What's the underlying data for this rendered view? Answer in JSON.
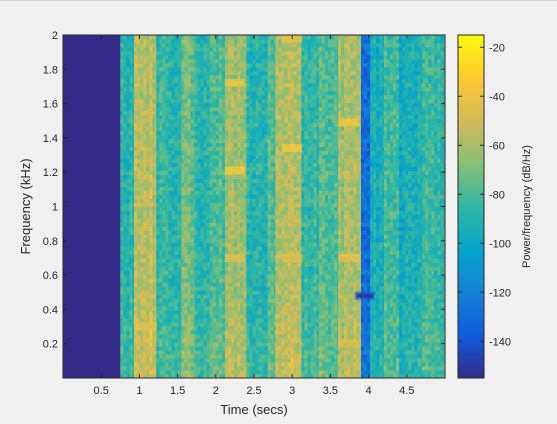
{
  "chart_data": {
    "type": "heatmap",
    "xlabel": "Time (secs)",
    "ylabel": "Frequency (kHz)",
    "colorbar_label": "Power/frequency (dB/Hz)",
    "xlim": [
      0,
      5.0
    ],
    "ylim": [
      0,
      2.0
    ],
    "clim": [
      -155,
      -15
    ],
    "x_ticks": [
      0.5,
      1,
      1.5,
      2,
      2.5,
      3,
      3.5,
      4,
      4.5
    ],
    "x_tick_labels": [
      "0.5",
      "1",
      "1.5",
      "2",
      "2.5",
      "3",
      "3.5",
      "4",
      "4.5"
    ],
    "y_ticks": [
      0.2,
      0.4,
      0.6,
      0.8,
      1.0,
      1.2,
      1.4,
      1.6,
      1.8,
      2.0
    ],
    "y_tick_labels": [
      "0.2",
      "0.4",
      "0.6",
      "0.8",
      "1",
      "1.2",
      "1.4",
      "1.6",
      "1.8",
      "2"
    ],
    "colorbar_ticks": [
      -20,
      -40,
      -60,
      -80,
      -100,
      -120,
      -140
    ],
    "colorbar_tick_labels": [
      "-20",
      "-40",
      "-60",
      "-80",
      "-100",
      "-120",
      "-140"
    ],
    "colormap": "parula",
    "colormap_stops": [
      "#352a87",
      "#0f5cdd",
      "#1481d6",
      "#06a4ca",
      "#2eb7a4",
      "#87bf77",
      "#d1bb59",
      "#fec832",
      "#f9fb0e"
    ],
    "time_segments_secs": [
      {
        "t0": 0.0,
        "t1": 0.75,
        "level_db": -155
      },
      {
        "t0": 0.75,
        "t1": 0.93,
        "level_db": -88
      },
      {
        "t0": 0.93,
        "t1": 1.22,
        "level_db": -55
      },
      {
        "t0": 1.22,
        "t1": 1.55,
        "level_db": -85
      },
      {
        "t0": 1.55,
        "t1": 1.72,
        "level_db": -72
      },
      {
        "t0": 1.72,
        "t1": 1.92,
        "level_db": -90
      },
      {
        "t0": 1.92,
        "t1": 2.12,
        "level_db": -80
      },
      {
        "t0": 2.12,
        "t1": 2.4,
        "level_db": -62
      },
      {
        "t0": 2.4,
        "t1": 2.68,
        "level_db": -90
      },
      {
        "t0": 2.68,
        "t1": 2.78,
        "level_db": -80
      },
      {
        "t0": 2.78,
        "t1": 3.12,
        "level_db": -58
      },
      {
        "t0": 3.12,
        "t1": 3.35,
        "level_db": -85
      },
      {
        "t0": 3.35,
        "t1": 3.6,
        "level_db": -78
      },
      {
        "t0": 3.6,
        "t1": 3.9,
        "level_db": -60
      },
      {
        "t0": 3.9,
        "t1": 4.02,
        "level_db": -130
      },
      {
        "t0": 4.02,
        "t1": 4.2,
        "level_db": -95
      },
      {
        "t0": 4.2,
        "t1": 4.4,
        "level_db": -82
      },
      {
        "t0": 4.4,
        "t1": 4.7,
        "level_db": -95
      },
      {
        "t0": 4.7,
        "t1": 5.0,
        "level_db": -85
      }
    ],
    "peaks": [
      {
        "t": 2.25,
        "f_khz": 1.72,
        "level_db": -40
      },
      {
        "t": 2.25,
        "f_khz": 1.21,
        "level_db": -38
      },
      {
        "t": 2.25,
        "f_khz": 0.7,
        "level_db": -48
      },
      {
        "t": 3.0,
        "f_khz": 1.98,
        "level_db": -45
      },
      {
        "t": 3.0,
        "f_khz": 1.34,
        "level_db": -38
      },
      {
        "t": 3.0,
        "f_khz": 0.7,
        "level_db": -48
      },
      {
        "t": 3.75,
        "f_khz": 1.49,
        "level_db": -40
      },
      {
        "t": 3.75,
        "f_khz": 0.7,
        "level_db": -45
      },
      {
        "t": 3.75,
        "f_khz": 0.2,
        "level_db": -50
      },
      {
        "t": 1.1,
        "f_khz": 0.3,
        "level_db": -48
      },
      {
        "t": 3.95,
        "f_khz": 0.48,
        "level_db": -150
      }
    ]
  }
}
